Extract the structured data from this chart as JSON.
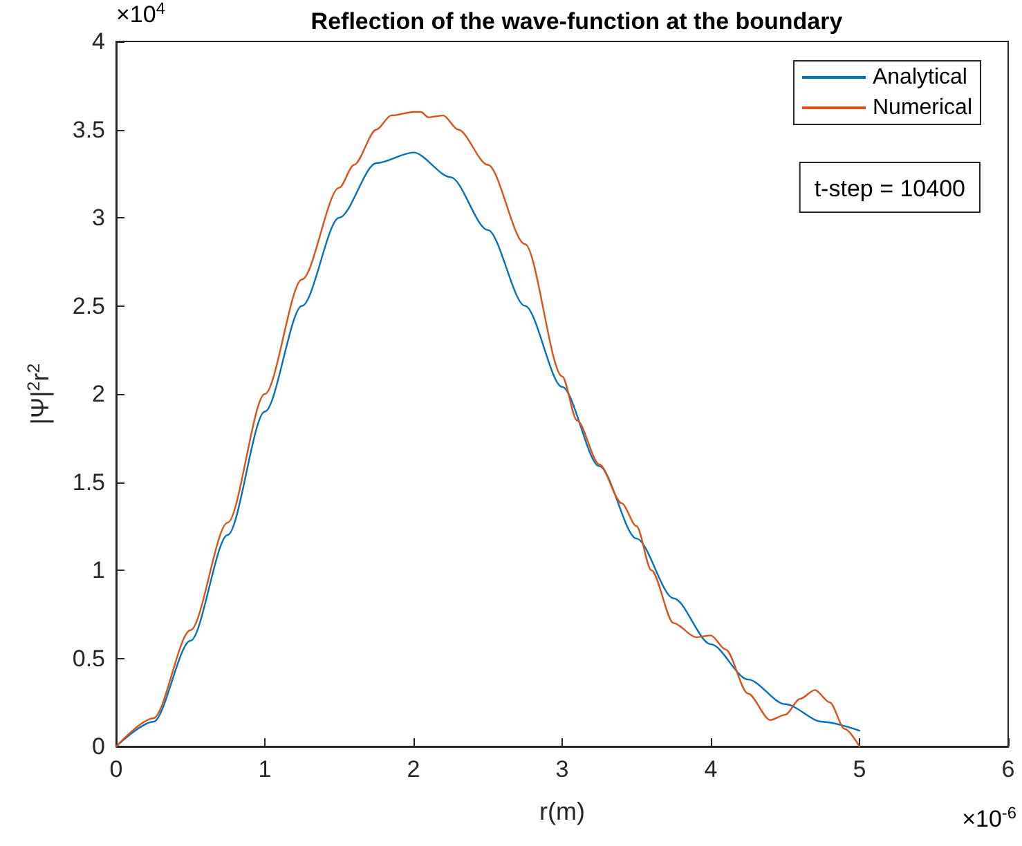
{
  "chart_data": {
    "type": "line",
    "title": "Reflection of the wave-function at the boundary",
    "xlabel": "r(m)",
    "ylabel": "|Ψ|$^{2}$r$^{2}$",
    "annotations": [
      "×10$^{4}$",
      "×10$^{-6}$",
      "t-step = 10400"
    ],
    "xlim": [
      0,
      6
    ],
    "xticks": [
      0,
      1,
      2,
      3,
      4,
      5,
      6
    ],
    "ylim": [
      0,
      4
    ],
    "yticks": [
      0,
      0.5,
      1,
      1.5,
      2,
      2.5,
      3,
      3.5,
      4
    ],
    "grid": false,
    "legend": "top right",
    "marker": "none",
    "line_style": "solid",
    "series": [
      {
        "name": "Analytical",
        "color": "#0072bd",
        "x": [
          0,
          0.25,
          0.5,
          0.75,
          1,
          1.25,
          1.5,
          1.75,
          2,
          2.25,
          2.5,
          2.75,
          3,
          3.25,
          3.5,
          3.75,
          4,
          4.25,
          4.5,
          4.75,
          5
        ],
        "values": [
          0,
          0.14,
          0.6,
          1.2,
          1.9,
          2.5,
          3.0,
          3.31,
          3.37,
          3.23,
          2.93,
          2.5,
          2.04,
          1.59,
          1.18,
          0.84,
          0.58,
          0.38,
          0.24,
          0.14,
          0.09
        ]
      },
      {
        "name": "Numerical",
        "color": "#d95319",
        "x": [
          0,
          0.25,
          0.5,
          0.75,
          1,
          1.25,
          1.5,
          1.6,
          1.75,
          1.85,
          2,
          2.05,
          2.1,
          2.2,
          2.3,
          2.5,
          2.75,
          3,
          3.1,
          3.25,
          3.4,
          3.5,
          3.6,
          3.75,
          3.9,
          4,
          4.1,
          4.25,
          4.4,
          4.5,
          4.6,
          4.7,
          4.8,
          4.9,
          5
        ],
        "values": [
          0,
          0.16,
          0.66,
          1.27,
          2.0,
          2.65,
          3.17,
          3.3,
          3.5,
          3.58,
          3.6,
          3.6,
          3.57,
          3.58,
          3.5,
          3.3,
          2.85,
          2.1,
          1.85,
          1.6,
          1.38,
          1.25,
          1.0,
          0.7,
          0.62,
          0.63,
          0.55,
          0.3,
          0.15,
          0.18,
          0.27,
          0.32,
          0.25,
          0.1,
          0
        ]
      }
    ]
  }
}
